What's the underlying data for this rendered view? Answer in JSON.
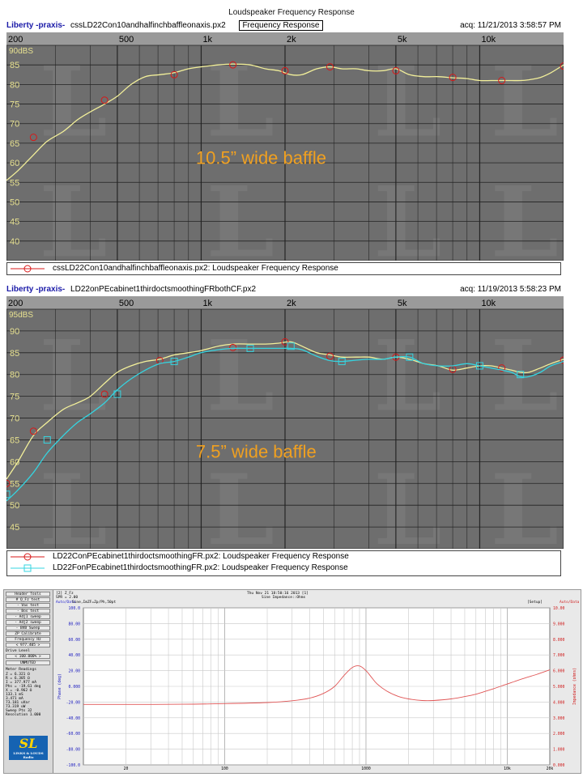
{
  "page_title": "Loudspeaker Frequency Response",
  "watermark_letter": "L",
  "chart_data": [
    {
      "type": "line",
      "brand": "Liberty -praxis-",
      "file": "cssLD22Con10andhalfinchbaffleonaxis.px2",
      "tag": "Frequency Response",
      "acq": "acq: 11/21/2013 3:58:57 PM",
      "annotation": "10.5” wide baffle",
      "x_scale": "log",
      "xlim": [
        200,
        20000
      ],
      "ylim": [
        35,
        90
      ],
      "grid": true,
      "ylabel_top": "90dBS",
      "x_tick_labels": [
        {
          "f": 200,
          "label": "200"
        },
        {
          "f": 500,
          "label": "500"
        },
        {
          "f": 1000,
          "label": "1k"
        },
        {
          "f": 2000,
          "label": "2k"
        },
        {
          "f": 5000,
          "label": "5k"
        },
        {
          "f": 10000,
          "label": "10k"
        }
      ],
      "y_tick_labels": [
        "85",
        "80",
        "75",
        "70",
        "65",
        "60",
        "55",
        "50",
        "45",
        "40"
      ],
      "series": [
        {
          "name": "cssLD22Con10andhalfinchbaffleonaxis.px2:  Loudspeaker Frequency Response",
          "color": "#f3f09a",
          "marker": "circle",
          "marker_color": "#d81818",
          "x": [
            200,
            220,
            250,
            280,
            320,
            360,
            400,
            450,
            500,
            560,
            630,
            710,
            800,
            900,
            1000,
            1150,
            1300,
            1500,
            1700,
            1900,
            2100,
            2300,
            2600,
            2900,
            3200,
            3600,
            4000,
            4500,
            5000,
            5600,
            6300,
            7100,
            8000,
            9000,
            10000,
            11000,
            12000,
            13000,
            14000,
            15000,
            16500,
            18000,
            20000
          ],
          "y": [
            55.5,
            58,
            62,
            65.5,
            68,
            71,
            73,
            75,
            77,
            80,
            82,
            82.5,
            83,
            84,
            84.5,
            85,
            85.2,
            85,
            84,
            83.5,
            82.5,
            82.5,
            84,
            84.5,
            84,
            84,
            83.5,
            83.5,
            84,
            82.5,
            82,
            82,
            81.7,
            81.5,
            81,
            81,
            81,
            81,
            81,
            81.2,
            81.8,
            83,
            85
          ],
          "markers_x": [
            250,
            450,
            800,
            1300,
            2000,
            2900,
            5000,
            8000,
            12000,
            20000
          ],
          "markers_y": [
            66.5,
            76,
            82.5,
            85,
            83.5,
            84.5,
            83.5,
            81.8,
            81,
            84.7
          ]
        }
      ]
    },
    {
      "type": "line",
      "brand": "Liberty -praxis-",
      "file": "LD22onPEcabinet1thirdoctsmoothingFRbothCF.px2",
      "acq": "acq: 11/19/2013 5:58:23 PM",
      "annotation": "7.5” wide baffle",
      "x_scale": "log",
      "xlim": [
        200,
        20000
      ],
      "ylim": [
        40,
        95
      ],
      "grid": true,
      "ylabel_top": "95dBS",
      "x_tick_labels": [
        {
          "f": 200,
          "label": "200"
        },
        {
          "f": 500,
          "label": "500"
        },
        {
          "f": 1000,
          "label": "1k"
        },
        {
          "f": 2000,
          "label": "2k"
        },
        {
          "f": 5000,
          "label": "5k"
        },
        {
          "f": 10000,
          "label": "10k"
        }
      ],
      "y_tick_labels": [
        "90",
        "85",
        "80",
        "75",
        "70",
        "65",
        "60",
        "55",
        "50",
        "45"
      ],
      "series": [
        {
          "name": "LD22ConPEcabinet1thirdoctsmoothingFR.px2:  Loudspeaker Frequency Response",
          "color": "#f3f09a",
          "marker": "circle",
          "marker_color": "#d81818",
          "x": [
            200,
            220,
            250,
            280,
            320,
            360,
            400,
            450,
            500,
            560,
            630,
            710,
            800,
            900,
            1000,
            1150,
            1300,
            1500,
            1700,
            1900,
            2100,
            2300,
            2600,
            2900,
            3200,
            3600,
            4000,
            4500,
            5000,
            5600,
            6300,
            7100,
            8000,
            9000,
            10000,
            11000,
            12000,
            13000,
            14000,
            15000,
            16500,
            18000,
            20000
          ],
          "y": [
            56,
            60,
            66,
            69,
            72,
            73.5,
            75,
            78,
            80.5,
            82,
            83,
            83.5,
            84.5,
            85,
            85.5,
            86.5,
            87,
            87,
            87,
            87.2,
            87.5,
            86.5,
            85,
            84.5,
            84,
            84,
            84,
            83.5,
            84,
            83.5,
            82.5,
            82,
            81,
            81.5,
            82,
            82,
            81.5,
            81,
            80.5,
            80.5,
            81.5,
            82.5,
            83.5
          ],
          "markers_x": [
            200,
            250,
            450,
            710,
            1300,
            2000,
            2900,
            5000,
            8000,
            12000,
            20000
          ],
          "markers_y": [
            55,
            67,
            75.5,
            83.2,
            86.2,
            87.5,
            84.2,
            84,
            81.2,
            81.5,
            83.3
          ]
        },
        {
          "name": "LD22FonPEcabinet1thirdoctsmoothingFR.px2:  Loudspeaker Frequency Response",
          "color": "#35d4e0",
          "marker": "square",
          "marker_color": "#35d4e0",
          "x": [
            200,
            220,
            250,
            280,
            320,
            360,
            400,
            450,
            500,
            560,
            630,
            710,
            800,
            900,
            1000,
            1150,
            1300,
            1500,
            1700,
            1900,
            2100,
            2300,
            2600,
            2900,
            3200,
            3600,
            4000,
            4500,
            5000,
            5600,
            6300,
            7100,
            8000,
            9000,
            10000,
            11000,
            12000,
            13000,
            14000,
            15000,
            16500,
            18000,
            20000
          ],
          "y": [
            51,
            53.5,
            57.5,
            62,
            66,
            69,
            71,
            73.5,
            76.5,
            79,
            81,
            82.5,
            83,
            84,
            85,
            85.7,
            86,
            86,
            86,
            86,
            86,
            85.7,
            84.2,
            83.2,
            83,
            83.3,
            83.5,
            83.5,
            84,
            84,
            82.5,
            82,
            82,
            82.5,
            82,
            81.5,
            81,
            80.5,
            79.5,
            79.5,
            80.5,
            82,
            83
          ],
          "markers_x": [
            200,
            280,
            500,
            800,
            1500,
            2100,
            3200,
            5600,
            10000,
            14000
          ],
          "markers_y": [
            52.5,
            65,
            75.5,
            83,
            86,
            86.5,
            83,
            84,
            82,
            80
          ]
        }
      ]
    },
    {
      "type": "line",
      "x_scale": "log",
      "xlim": [
        10,
        20000
      ],
      "ylim": [
        -100,
        100
      ],
      "secondary_ylim": [
        0,
        10
      ],
      "grid": true,
      "y_tick_labels": [
        "100.0",
        "80.00",
        "60.00",
        "40.00",
        "20.00",
        "0.000",
        "-20.00",
        "-40.00",
        "-60.00",
        "-80.00",
        "-100.0"
      ],
      "y2_tick_labels": [
        "10.00",
        "9.000",
        "8.000",
        "7.000",
        "6.000",
        "5.000",
        "4.000",
        "3.000",
        "2.000",
        "1.000",
        "0.000"
      ],
      "x_tick_labels": [
        {
          "f": 20,
          "label": "20"
        },
        {
          "f": 100,
          "label": "100"
        },
        {
          "f": 1000,
          "label": "1000"
        },
        {
          "f": 10000,
          "label": "10k"
        },
        {
          "f": 20000,
          "label": "20k"
        }
      ],
      "ylabel": "Phase (deg)",
      "y2label": "Impedance (ohms)",
      "header_left": "[2] Z_Fz",
      "header_left2": "SPR = 2.00",
      "header_center": "Thu Nov 21 18:50:16 2013 [1]",
      "header_center2": "Sine Impedance::Ohms",
      "sub_left": "Auto/Data",
      "sub_left2": "Sine,ImZF=Zp/Ph,50pt",
      "sub_right": "[Setup]",
      "sub_right2": "Auto/Data",
      "series": [
        {
          "name": "impedance",
          "color": "#e05555",
          "x": [
            10,
            20,
            50,
            100,
            200,
            300,
            400,
            500,
            600,
            700,
            800,
            900,
            1000,
            1100,
            1200,
            1400,
            1700,
            2000,
            2500,
            3000,
            4000,
            5000,
            6000,
            8000,
            10000,
            13000,
            16000,
            20000
          ],
          "y": [
            3.85,
            3.85,
            3.86,
            3.9,
            3.97,
            4.08,
            4.25,
            4.55,
            5.0,
            5.7,
            6.2,
            6.3,
            6.0,
            5.55,
            5.15,
            4.7,
            4.35,
            4.2,
            4.1,
            4.1,
            4.2,
            4.35,
            4.5,
            4.85,
            5.15,
            5.5,
            5.75,
            6.05
          ]
        }
      ]
    }
  ],
  "side_panel": {
    "buttons": [
      "Header Tools",
      "# Q_Fz test",
      "- Vas test",
      "- Bos test",
      "- Adj1 sweep",
      "- Adj2 sweep",
      "- BVB Sweep",
      "ZP Calibrate",
      "Frequency Hz"
    ],
    "freq_value": "977.405",
    "drive_label": "Drive Level",
    "drive_value": "100.000%",
    "mode": "UNMUTED",
    "meter_title": "Meter Readings",
    "readings": [
      "Z =   6.321 Ω",
      "R =   6.305 Ω",
      "I = 377.977 mA",
      "Phs = -19.61 deg",
      "X =  -0.962 Ω",
      "  133.1 mS",
      "  3.471 mA",
      "  73.181 uVar",
      "  73.319 uW"
    ],
    "sweep_pts": "Sweep Pts  32",
    "resolution": "Resolution 1.000",
    "logo_text": "SL",
    "logo_sub": "LINKS & LOUDS\nRadio"
  }
}
